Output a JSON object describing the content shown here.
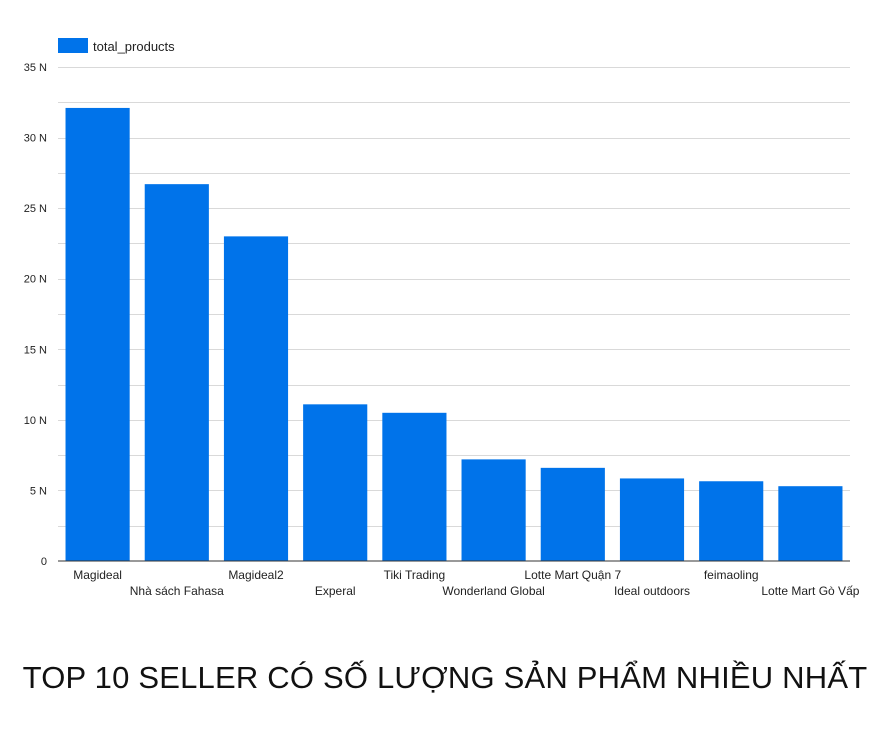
{
  "chart_data": {
    "type": "bar",
    "title": "TOP 10 SELLER CÓ SỐ LƯỢNG SẢN PHẨM NHIỀU NHẤT",
    "categories": [
      "Magideal",
      "Nhà sách Fahasa",
      "Magideal2",
      "Experal",
      "Tiki Trading",
      "Wonderland Global",
      "Lotte Mart Quận 7",
      "Ideal outdoors",
      "feimaoling",
      "Lotte Mart Gò Vấp"
    ],
    "series": [
      {
        "name": "total_products",
        "values": [
          32100,
          26700,
          23000,
          11100,
          10500,
          7200,
          6600,
          5850,
          5650,
          5300
        ]
      }
    ],
    "y_ticks": [
      {
        "value": 0,
        "label": "0"
      },
      {
        "value": 5000,
        "label": "5 N"
      },
      {
        "value": 10000,
        "label": "10 N"
      },
      {
        "value": 15000,
        "label": "15 N"
      },
      {
        "value": 20000,
        "label": "20 N"
      },
      {
        "value": 25000,
        "label": "25 N"
      },
      {
        "value": 30000,
        "label": "30 N"
      },
      {
        "value": 35000,
        "label": "35 N"
      }
    ],
    "ylim": [
      0,
      35000
    ],
    "grid": true,
    "legend_position": "top-left",
    "colors": {
      "bar": "#0073ea",
      "grid": "#d9d9d9",
      "axis": "#333333",
      "text": "#222222"
    }
  }
}
